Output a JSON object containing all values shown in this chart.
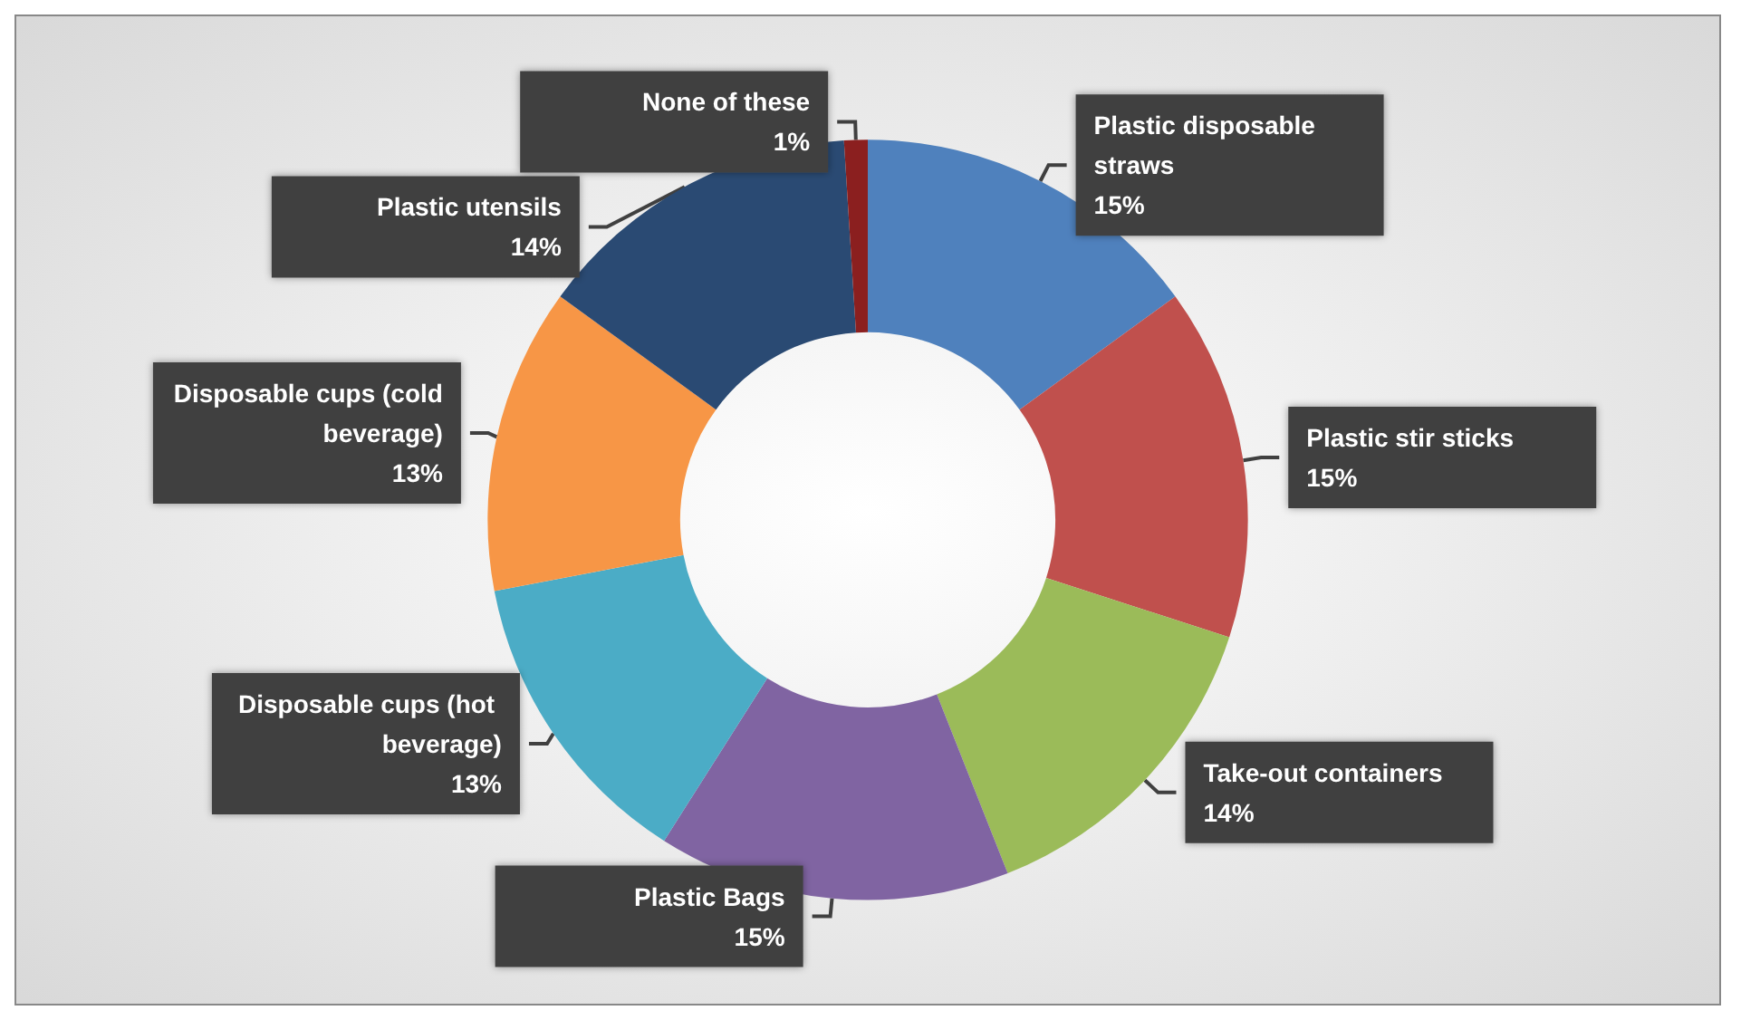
{
  "chart_data": {
    "type": "donut",
    "categories": [
      "Plastic disposable straws",
      "Plastic stir sticks",
      "Take-out containers",
      "Plastic Bags",
      "Disposable cups (hot beverage)",
      "Disposable cups (cold beverage)",
      "Plastic utensils",
      "None of these"
    ],
    "values": [
      15,
      15,
      14,
      15,
      13,
      13,
      14,
      1
    ],
    "colors": [
      "#4f81bd",
      "#c0504d",
      "#9bbb59",
      "#8064a2",
      "#4bacc6",
      "#f79646",
      "#2a4a73",
      "#8b1f1f"
    ],
    "value_labels": [
      "15%",
      "15%",
      "14%",
      "15%",
      "13%",
      "13%",
      "14%",
      "1%"
    ],
    "legend": false
  }
}
